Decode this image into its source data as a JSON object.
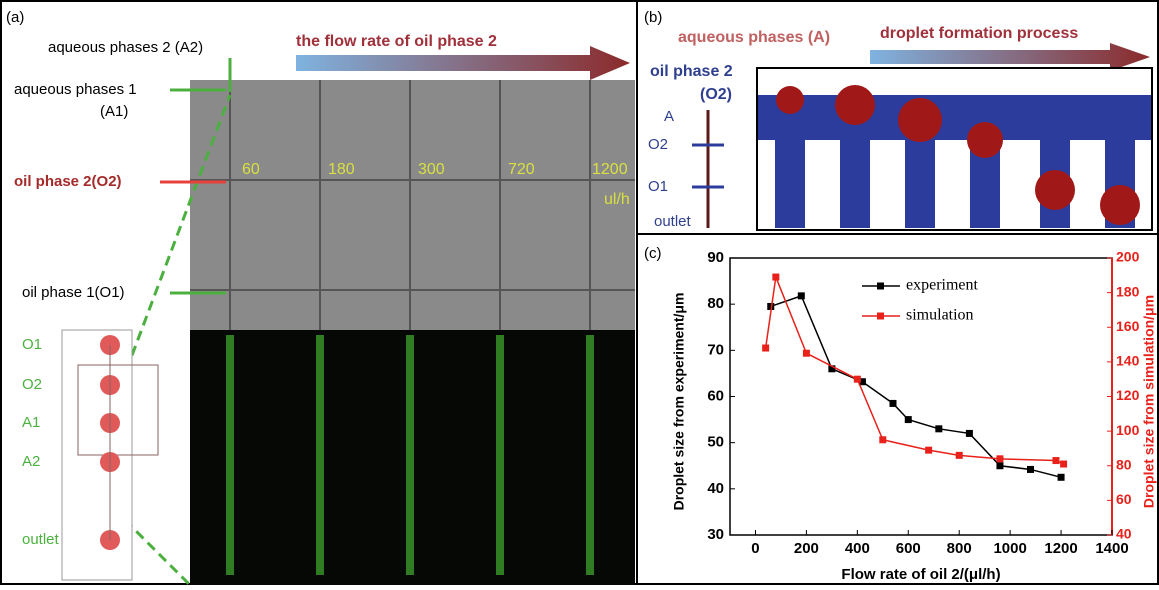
{
  "panel_a": {
    "label": "(a)",
    "title": "the flow rate of oil phase 2",
    "a2": "aqueous phases  2 (A2)",
    "a1": "aqueous phases 1",
    "a1_short": "(A1)",
    "o2": "oil phase 2(O2)",
    "o1": "oil phase 1(O1)",
    "flow_rates": [
      "60",
      "180",
      "300",
      "720",
      "1200"
    ],
    "unit": "ul/h",
    "diagram": [
      "O1",
      "O2",
      "A1",
      "A2",
      "outlet"
    ]
  },
  "panel_b": {
    "label": "(b)",
    "aqueous": "aqueous phases (A)",
    "title": "droplet formation process",
    "oil": "oil phase 2",
    "oil_short": "(O2)",
    "diagram": [
      "A",
      "O2",
      "O1",
      "outlet"
    ]
  },
  "chart_data": {
    "type": "line",
    "label": "(c)",
    "x_label": "Flow rate of oil 2/(μl/h)",
    "y_label": "Droplet size from experiment/μm",
    "y2_label": "Droplet size from simulation/μm",
    "xlim": [
      -100,
      1400
    ],
    "xticks": [
      0,
      200,
      400,
      600,
      800,
      1000,
      1200,
      1400
    ],
    "ylim": [
      30,
      90
    ],
    "yticks": [
      30,
      40,
      50,
      60,
      70,
      80,
      90
    ],
    "y2lim": [
      40,
      200
    ],
    "y2ticks": [
      40,
      60,
      80,
      100,
      120,
      140,
      160,
      180,
      200
    ],
    "series": [
      {
        "name": "experiment",
        "color": "#000000",
        "x": [
          60,
          180,
          300,
          420,
          540,
          600,
          720,
          840,
          960,
          1080,
          1200
        ],
        "values": [
          79.5,
          81.8,
          66,
          63.2,
          58.5,
          55,
          53,
          52,
          45,
          44.2,
          42.5
        ]
      },
      {
        "name": "simulation",
        "color": "#e8211b",
        "axis": "y2",
        "x": [
          40,
          80,
          200,
          400,
          500,
          680,
          800,
          960,
          1180,
          1210
        ],
        "values": [
          148,
          189,
          145,
          130,
          95,
          89,
          86,
          84,
          83,
          81
        ]
      }
    ]
  }
}
